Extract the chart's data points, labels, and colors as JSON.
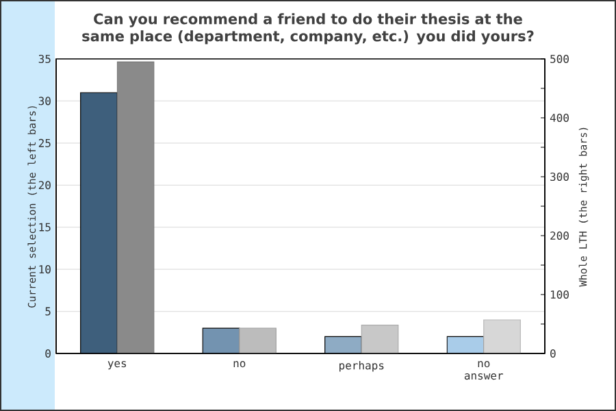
{
  "chart_data": {
    "type": "bar",
    "title": "Can you recommend a friend to do their thesis at the same place (department, company, etc.) you did yours?",
    "ylabel": "Current selection (the left bars)",
    "y2label": "Whole LTH (the right bars)",
    "categories": [
      "yes",
      "no",
      "perhaps",
      "no answer"
    ],
    "series": [
      {
        "axis": "y",
        "colors": [
          "#3e5f7c",
          "#7393b0",
          "#8eabc4",
          "#a9cce9"
        ],
        "values": [
          31,
          3,
          2,
          2
        ]
      },
      {
        "axis": "y2",
        "colors": [
          "#8a8a8a",
          "#bcbcbc",
          "#c8c8c8",
          "#d7d7d7"
        ],
        "values": [
          495,
          43,
          48,
          57
        ]
      }
    ],
    "ylim": [
      0,
      35
    ],
    "yticks": [
      0,
      5,
      10,
      15,
      20,
      25,
      30,
      35
    ],
    "y2lim": [
      0,
      500
    ],
    "y2ticks": [
      0,
      {
        "value": 50,
        "label": null
      },
      100,
      {
        "value": 150,
        "label": null
      },
      200,
      {
        "value": 250,
        "label": null
      },
      300,
      {
        "value": 350,
        "label": null
      },
      400,
      {
        "value": 450,
        "label": null
      },
      500
    ],
    "grid": "y"
  }
}
